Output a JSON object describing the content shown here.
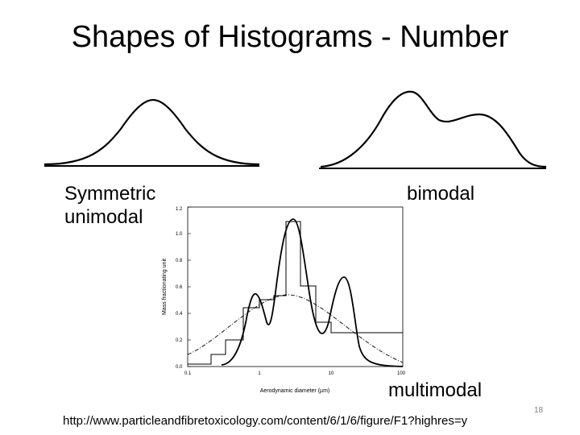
{
  "slide": {
    "title": "Shapes of Histograms - Number",
    "labels": {
      "symmetric": "Symmetric unimodal",
      "bimodal": "bimodal",
      "multimodal": "multimodal"
    },
    "source_url": "http://www.particleandfibretoxicology.com/content/6/1/6/figure/F1?highres=y",
    "page_number": "18"
  },
  "figure": {
    "ylabel": "Mass fractionating unit",
    "xlabel": "Aerodynamic diameter (µm)",
    "y_ticks": [
      "0.0",
      "0.2",
      "0.4",
      "0.6",
      "0.8",
      "1.0",
      "1.2"
    ],
    "x_ticks": [
      "0.1",
      "1",
      "10",
      "100"
    ]
  }
}
